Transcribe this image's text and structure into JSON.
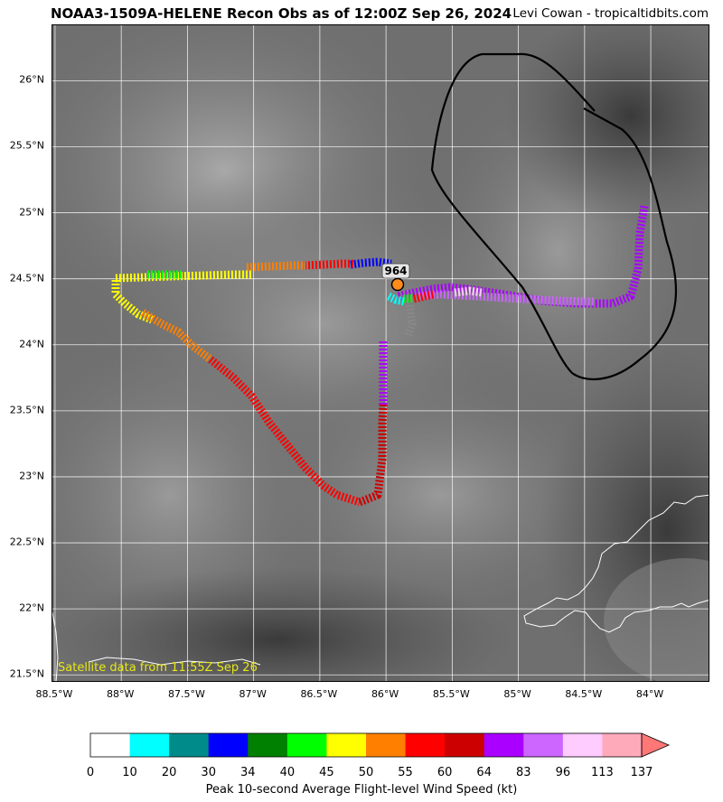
{
  "title": "NOAA3-1509A-HELENE Recon Obs as of 12:00Z Sep 26, 2024",
  "credit": "Levi Cowan - tropicaltidbits.com",
  "satellite_note": "Satellite data from 11:55Z Sep 26",
  "pressure_label": "964",
  "map": {
    "lon_range": [
      -88.52,
      -83.55
    ],
    "lat_range": [
      21.44,
      26.42
    ],
    "x_ticks": [
      "88.5°W",
      "88°W",
      "87.5°W",
      "87°W",
      "86.5°W",
      "86°W",
      "85.5°W",
      "85°W",
      "84.5°W",
      "84°W"
    ],
    "x_tick_values": [
      -88.5,
      -88,
      -87.5,
      -87,
      -86.5,
      -86,
      -85.5,
      -85,
      -84.5,
      -84
    ],
    "y_ticks": [
      "21.5°N",
      "22°N",
      "22.5°N",
      "23°N",
      "23.5°N",
      "24°N",
      "24.5°N",
      "25°N",
      "25.5°N",
      "26°N"
    ],
    "y_tick_values": [
      21.5,
      22,
      22.5,
      23,
      23.5,
      24,
      24.5,
      25,
      25.5,
      26
    ]
  },
  "colorbar": {
    "title": "Peak 10-second Average Flight-level Wind Speed (kt)",
    "bounds": [
      "0",
      "10",
      "20",
      "30",
      "34",
      "40",
      "45",
      "50",
      "55",
      "60",
      "64",
      "83",
      "96",
      "113",
      "137"
    ],
    "colors": [
      "#ffffff",
      "#00ffff",
      "#008b8b",
      "#0000ff",
      "#008000",
      "#00ff00",
      "#ffff00",
      "#ff7f00",
      "#ff0000",
      "#cc0000",
      "#aa00ff",
      "#cc66ff",
      "#ffccff",
      "#ffaabb"
    ],
    "extend_color": "#ff7777"
  }
}
